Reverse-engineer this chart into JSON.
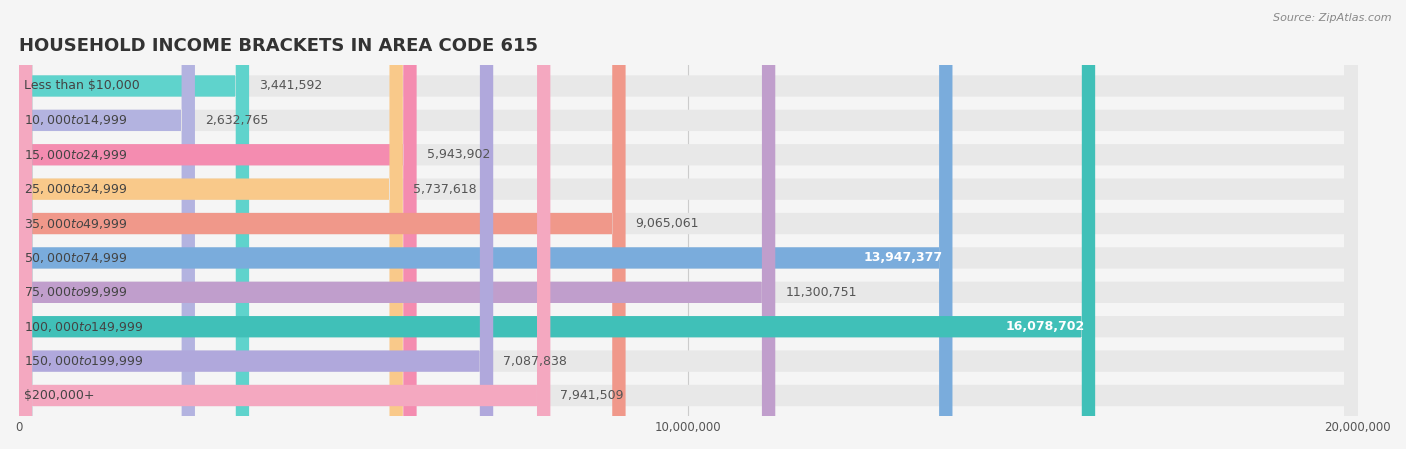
{
  "title": "HOUSEHOLD INCOME BRACKETS IN AREA CODE 615",
  "source": "Source: ZipAtlas.com",
  "categories": [
    "Less than $10,000",
    "$10,000 to $14,999",
    "$15,000 to $24,999",
    "$25,000 to $34,999",
    "$35,000 to $49,999",
    "$50,000 to $74,999",
    "$75,000 to $99,999",
    "$100,000 to $149,999",
    "$150,000 to $199,999",
    "$200,000+"
  ],
  "values": [
    3441592,
    2632765,
    5943902,
    5737618,
    9065061,
    13947377,
    11300751,
    16078702,
    7087838,
    7941509
  ],
  "bar_colors": [
    "#5fd3cc",
    "#b3b3e0",
    "#f48cb0",
    "#f9c98a",
    "#f0988a",
    "#7aacdc",
    "#c09ecc",
    "#40c0b8",
    "#b0a8dc",
    "#f4a8c0"
  ],
  "label_colors": [
    "#666666",
    "#666666",
    "#666666",
    "#666666",
    "#666666",
    "#ffffff",
    "#666666",
    "#ffffff",
    "#666666",
    "#666666"
  ],
  "xlim": [
    0,
    20000000
  ],
  "xticks": [
    0,
    10000000,
    20000000
  ],
  "xtick_labels": [
    "0",
    "10,000,000",
    "20,000,000"
  ],
  "background_color": "#f5f5f5",
  "bar_bg_color": "#e8e8e8",
  "title_fontsize": 13,
  "label_fontsize": 9,
  "value_fontsize": 9
}
